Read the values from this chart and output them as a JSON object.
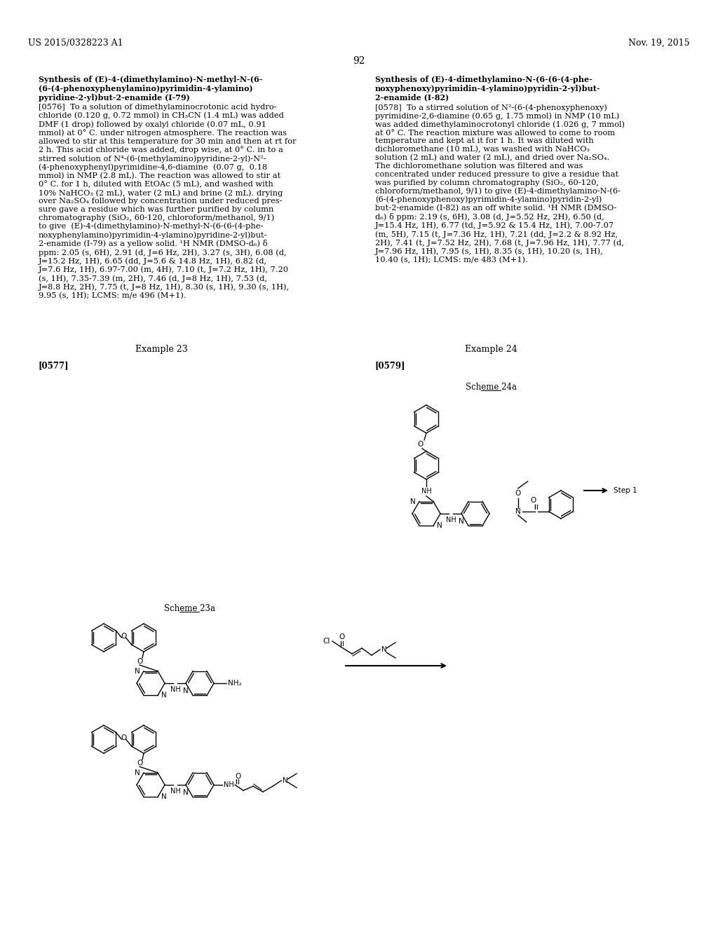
{
  "page_number": "92",
  "left_header": "US 2015/0328223 A1",
  "right_header": "Nov. 19, 2015",
  "background_color": "#ffffff",
  "text_color": "#000000"
}
